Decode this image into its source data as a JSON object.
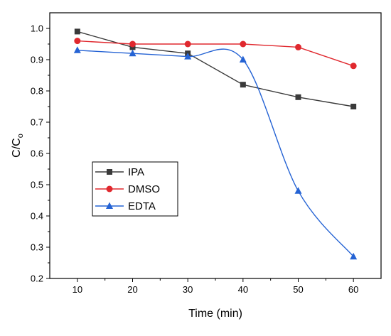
{
  "chart_data": {
    "type": "line",
    "x": [
      10,
      20,
      30,
      40,
      50,
      60
    ],
    "xlabel": "Time (min)",
    "ylabel": "C/C",
    "ylabel_subscript": "o",
    "xlim": [
      5,
      65
    ],
    "ylim": [
      0.2,
      1.05
    ],
    "xticks": [
      10,
      20,
      30,
      40,
      50,
      60
    ],
    "yticks": [
      0.2,
      0.3,
      0.4,
      0.5,
      0.6,
      0.7,
      0.8,
      0.9,
      1.0
    ],
    "xtick_labels": [
      "10",
      "20",
      "30",
      "40",
      "50",
      "60"
    ],
    "ytick_labels": [
      "0.2",
      "0.3",
      "0.4",
      "0.5",
      "0.6",
      "0.7",
      "0.8",
      "0.9",
      "1.0"
    ],
    "grid": false,
    "legend_position": "lower-left",
    "series": [
      {
        "name": "IPA",
        "marker": "square",
        "color": "#3a3a3a",
        "curve": "linear",
        "values": [
          0.99,
          0.94,
          0.92,
          0.82,
          0.78,
          0.75
        ]
      },
      {
        "name": "DMSO",
        "marker": "circle",
        "color": "#e0282e",
        "curve": "linear",
        "values": [
          0.96,
          0.95,
          0.95,
          0.95,
          0.94,
          0.88
        ]
      },
      {
        "name": "EDTA",
        "marker": "triangle",
        "color": "#2563d4",
        "curve": "smooth",
        "values": [
          0.93,
          0.92,
          0.91,
          0.9,
          0.48,
          0.27
        ]
      }
    ]
  }
}
